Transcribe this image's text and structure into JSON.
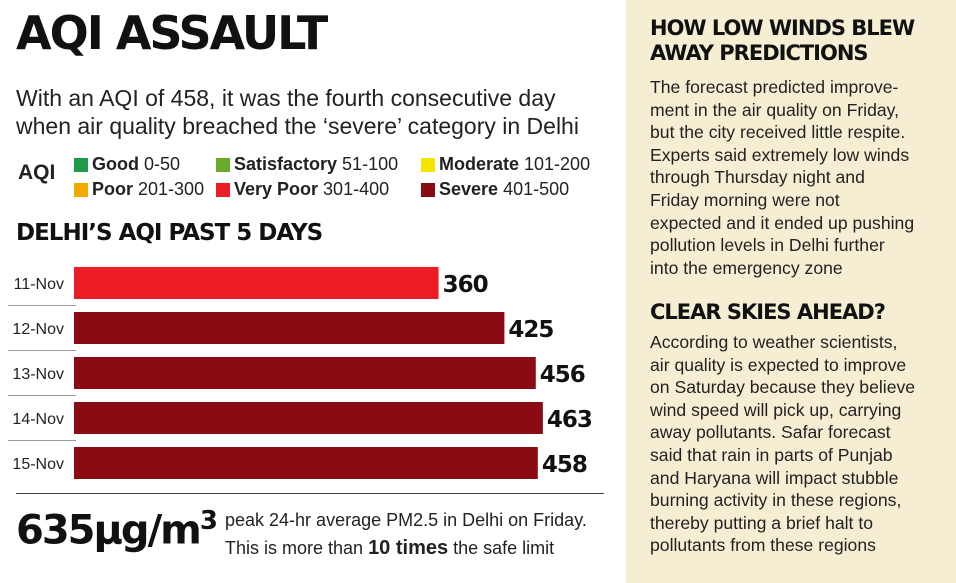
{
  "left": {
    "headline": "AQI ASSAULT",
    "subtitle": "With an AQI of 458, it was the fourth consecutive day when air quality breached the ‘severe’ category in Delhi",
    "legend": {
      "title": "AQI",
      "items": [
        {
          "name": "Good",
          "range": "0-50",
          "color": "#1f9a48"
        },
        {
          "name": "Satisfactory",
          "range": "51-100",
          "color": "#6aaa2a"
        },
        {
          "name": "Moderate",
          "range": "101-200",
          "color": "#f3e500"
        },
        {
          "name": "Poor",
          "range": "201-300",
          "color": "#f2a900"
        },
        {
          "name": "Very Poor",
          "range": "301-400",
          "color": "#ec1c24"
        },
        {
          "name": "Severe",
          "range": "401-500",
          "color": "#8b0b12"
        }
      ]
    },
    "section_title": "DELHI’S AQI PAST 5 DAYS",
    "stat": {
      "value": "635µg/m",
      "superscript": "3",
      "line1": "peak 24-hr average PM2.5 in Delhi on Friday.",
      "line2_pre": "This is more than ",
      "line2_bold": "10 times",
      "line2_post": " the safe limit"
    }
  },
  "chart_data": {
    "type": "bar",
    "orientation": "horizontal",
    "title": "DELHI’S AQI PAST 5 DAYS",
    "categories": [
      "11-Nov",
      "12-Nov",
      "13-Nov",
      "14-Nov",
      "15-Nov"
    ],
    "values": [
      360,
      425,
      456,
      463,
      458
    ],
    "colors": [
      "#ec1c24",
      "#8b0b12",
      "#8b0b12",
      "#8b0b12",
      "#8b0b12"
    ],
    "xlim": [
      0,
      500
    ],
    "grid": false,
    "legend": "none"
  },
  "sidebar": {
    "section1": {
      "heading_lines": [
        "HOW LOW WINDS BLEW",
        "AWAY PREDICTIONS"
      ],
      "body_lines": [
        "The forecast predicted improve-",
        "ment in the air quality on Friday,",
        "but the city received little respite.",
        "Experts said extremely low winds",
        "through Thursday night and",
        "Friday morning were not",
        "expected and it ended up pushing",
        "pollution levels in Delhi further",
        "into the emergency zone"
      ]
    },
    "section2": {
      "heading_lines": [
        "CLEAR SKIES AHEAD?"
      ],
      "body_lines": [
        "According to weather scientists,",
        "air quality is expected to improve",
        "on Saturday because they believe",
        "wind speed will pick up, carrying",
        "away pollutants. Safar forecast",
        "said that rain in parts of Punjab",
        "and Haryana will impact stubble",
        "burning activity in these regions,",
        "thereby putting a brief halt to",
        "pollutants from these regions"
      ]
    }
  }
}
